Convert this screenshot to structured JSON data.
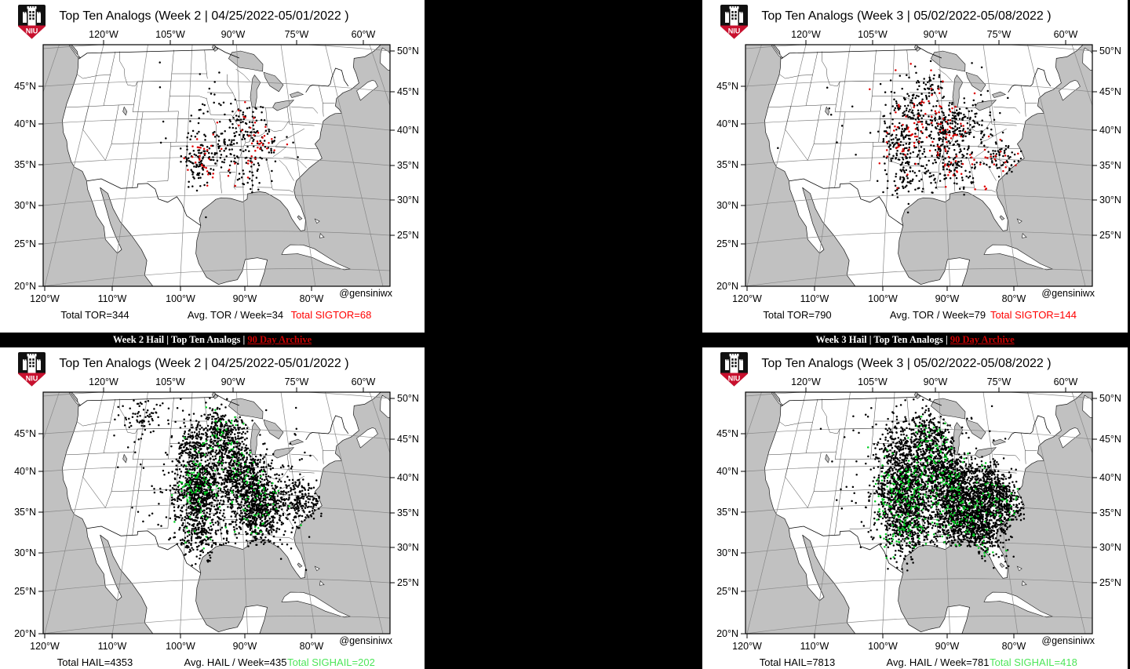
{
  "colors": {
    "background": "#000000",
    "water": "#c1c1c1",
    "land": "#ffffff",
    "coast": "#1a1a1a",
    "state_border": "#3c3c3c",
    "graticule": "#888888",
    "frame": "#000000",
    "dot_black": "#000000",
    "sig_tor_red": "#dd0000",
    "sig_hail_green": "#00cc22",
    "stat_red": "#ff0000",
    "stat_green": "#4ee65a",
    "banner_link_red": "#cc0000",
    "logo_red": "#c8102e"
  },
  "logo_text": "NIU",
  "attribution": "@gensiniwx",
  "axes": {
    "top": [
      "120°W",
      "105°W",
      "90°W",
      "75°W",
      "60°W"
    ],
    "bottom": [
      "120°W",
      "110°W",
      "100°W",
      "90°W",
      "80°W"
    ],
    "left": [
      "45°N",
      "40°N",
      "35°N",
      "30°N",
      "25°N",
      "20°N"
    ],
    "right": [
      "50°N",
      "45°N",
      "40°N",
      "35°N",
      "30°N",
      "25°N"
    ]
  },
  "banners": [
    {
      "text": "Week 2 Hail | Top Ten Analogs | ",
      "link": "90 Day Archive"
    },
    {
      "text": "Week 3 Hail | Top Ten Analogs | ",
      "link": "90 Day Archive"
    }
  ],
  "panels": [
    {
      "id": "tor-week2",
      "title": "Top Ten Analogs (Week 2 | 04/25/2022-05/01/2022 )",
      "stats": [
        {
          "label": "Total TOR=344",
          "color": "#000000"
        },
        {
          "label": "Avg. TOR / Week=34",
          "color": "#000000"
        },
        {
          "label": "Total SIGTOR=68",
          "color": "#ff0000"
        }
      ],
      "scatter": {
        "main": {
          "count": 344,
          "render": 344,
          "color": "#000000",
          "seed": 101,
          "clusters": [
            [
              35.4,
              97.6,
              1.6,
              1.8,
              0.26
            ],
            [
              33.2,
              97.8,
              1.2,
              1.5,
              0.1
            ],
            [
              36.6,
              92.5,
              1.5,
              2.0,
              0.14
            ],
            [
              39.3,
              88.6,
              1.6,
              2.2,
              0.16
            ],
            [
              36.8,
              86.0,
              1.2,
              1.8,
              0.09
            ],
            [
              33.2,
              88.6,
              1.5,
              1.8,
              0.1
            ],
            [
              41.5,
              96.5,
              1.2,
              1.5,
              0.05
            ],
            [
              38.0,
              95.0,
              5.0,
              7.0,
              0.1
            ]
          ]
        },
        "sig": {
          "count": 68,
          "render": 68,
          "color": "#dd0000",
          "seed": 202,
          "clusters": [
            [
              35.3,
              97.4,
              1.3,
              1.5,
              0.38
            ],
            [
              39.6,
              88.3,
              1.5,
              2.0,
              0.25
            ],
            [
              36.8,
              87.0,
              1.3,
              2.0,
              0.17
            ],
            [
              33.5,
              90.0,
              1.5,
              2.0,
              0.12
            ],
            [
              40.0,
              92.0,
              4.0,
              6.0,
              0.08
            ]
          ]
        }
      }
    },
    {
      "id": "tor-week3",
      "title": "Top Ten Analogs (Week 3 | 05/02/2022-05/08/2022 )",
      "stats": [
        {
          "label": "Total TOR=790",
          "color": "#000000"
        },
        {
          "label": "Avg. TOR / Week=79",
          "color": "#000000"
        },
        {
          "label": "Total SIGTOR=144",
          "color": "#ff0000"
        }
      ],
      "scatter": {
        "main": {
          "count": 790,
          "render": 790,
          "color": "#000000",
          "seed": 303,
          "clusters": [
            [
              36.6,
              97.6,
              1.8,
              2.0,
              0.17
            ],
            [
              41.3,
              96.3,
              1.6,
              2.0,
              0.11
            ],
            [
              38.7,
              90.3,
              1.6,
              2.2,
              0.14
            ],
            [
              40.2,
              85.3,
              1.5,
              2.2,
              0.1
            ],
            [
              34.6,
              87.6,
              1.6,
              2.2,
              0.12
            ],
            [
              35.3,
              79.6,
              1.2,
              1.6,
              0.07
            ],
            [
              44.3,
              92.5,
              1.4,
              2.0,
              0.06
            ],
            [
              31.8,
              96.8,
              1.5,
              1.8,
              0.07
            ],
            [
              33.3,
              92.0,
              1.5,
              2.0,
              0.05
            ],
            [
              38.0,
              93.0,
              5.5,
              8.0,
              0.11
            ]
          ]
        },
        "sig": {
          "count": 144,
          "render": 144,
          "color": "#dd0000",
          "seed": 404,
          "clusters": [
            [
              36.8,
              97.3,
              1.8,
              2.0,
              0.25
            ],
            [
              38.8,
              89.8,
              1.8,
              2.5,
              0.22
            ],
            [
              34.5,
              87.5,
              1.8,
              2.5,
              0.18
            ],
            [
              41.5,
              95.5,
              1.5,
              2.0,
              0.1
            ],
            [
              35.3,
              79.8,
              1.2,
              1.8,
              0.08
            ],
            [
              43.0,
              90.0,
              1.5,
              2.5,
              0.07
            ],
            [
              37.5,
              92.0,
              4.5,
              7.0,
              0.1
            ]
          ]
        }
      }
    },
    {
      "id": "hail-week2",
      "title": "Top Ten Analogs (Week 2 | 04/25/2022-05/01/2022 )",
      "stats": [
        {
          "label": "Total HAIL=4353",
          "color": "#000000"
        },
        {
          "label": "Avg. HAIL / Week=435",
          "color": "#000000"
        },
        {
          "label": "Total SIGHAIL=202",
          "color": "#4ee65a"
        }
      ],
      "scatter": {
        "main": {
          "count": 4353,
          "render": 3000,
          "color": "#000000",
          "seed": 505,
          "clusters": [
            [
              36.6,
              97.8,
              2.2,
              2.4,
              0.2
            ],
            [
              42.3,
              98.5,
              1.8,
              2.4,
              0.09
            ],
            [
              44.6,
              92.8,
              1.6,
              2.2,
              0.09
            ],
            [
              39.2,
              89.6,
              2.0,
              2.6,
              0.16
            ],
            [
              35.6,
              86.6,
              1.8,
              2.4,
              0.11
            ],
            [
              33.0,
              87.2,
              1.8,
              2.2,
              0.09
            ],
            [
              35.9,
              79.3,
              1.5,
              2.0,
              0.07
            ],
            [
              31.3,
              97.6,
              1.8,
              2.0,
              0.06
            ],
            [
              46.6,
              109.5,
              1.5,
              3.0,
              0.03
            ],
            [
              38.0,
              92.0,
              5.5,
              8.0,
              0.1
            ]
          ]
        },
        "sig": {
          "count": 202,
          "render": 202,
          "color": "#00cc22",
          "seed": 606,
          "clusters": [
            [
              37.0,
              97.8,
              2.0,
              2.2,
              0.3
            ],
            [
              39.5,
              89.5,
              2.0,
              2.5,
              0.2
            ],
            [
              44.5,
              92.5,
              1.5,
              2.0,
              0.12
            ],
            [
              33.5,
              87.5,
              2.0,
              2.5,
              0.12
            ],
            [
              31.5,
              97.5,
              1.5,
              2.0,
              0.08
            ],
            [
              35.5,
              85.0,
              2.0,
              3.0,
              0.1
            ],
            [
              41.0,
              98.0,
              2.0,
              2.5,
              0.08
            ]
          ]
        }
      }
    },
    {
      "id": "hail-week3",
      "title": "Top Ten Analogs (Week 3 | 05/02/2022-05/08/2022 )",
      "stats": [
        {
          "label": "Total HAIL=7813",
          "color": "#000000"
        },
        {
          "label": "Avg. HAIL / Week=781",
          "color": "#000000"
        },
        {
          "label": "Total SIGHAIL=418",
          "color": "#4ee65a"
        }
      ],
      "scatter": {
        "main": {
          "count": 7813,
          "render": 4200,
          "color": "#000000",
          "seed": 707,
          "clusters": [
            [
              36.6,
              97.6,
              2.4,
              2.6,
              0.16
            ],
            [
              41.8,
              97.5,
              2.0,
              2.5,
              0.06
            ],
            [
              44.3,
              92.3,
              1.6,
              2.2,
              0.05
            ],
            [
              39.0,
              89.3,
              2.2,
              2.8,
              0.13
            ],
            [
              35.5,
              86.0,
              2.2,
              2.8,
              0.13
            ],
            [
              32.6,
              86.6,
              2.0,
              2.6,
              0.11
            ],
            [
              35.4,
              79.6,
              1.8,
              2.2,
              0.09
            ],
            [
              31.6,
              96.6,
              2.0,
              2.4,
              0.08
            ],
            [
              31.2,
              83.3,
              1.6,
              2.0,
              0.05
            ],
            [
              37.8,
              81.0,
              1.5,
              2.0,
              0.04
            ],
            [
              38.0,
              91.0,
              5.5,
              8.0,
              0.1
            ]
          ]
        },
        "sig": {
          "count": 418,
          "render": 418,
          "color": "#00cc22",
          "seed": 808,
          "clusters": [
            [
              36.8,
              97.4,
              2.2,
              2.4,
              0.26
            ],
            [
              33.8,
              87.0,
              2.2,
              2.8,
              0.2
            ],
            [
              39.0,
              89.0,
              2.2,
              2.8,
              0.18
            ],
            [
              31.8,
              96.8,
              1.8,
              2.2,
              0.1
            ],
            [
              35.5,
              80.0,
              1.8,
              2.2,
              0.08
            ],
            [
              43.0,
              93.0,
              2.0,
              2.5,
              0.08
            ],
            [
              30.8,
              83.5,
              1.5,
              2.0,
              0.05
            ],
            [
              37.0,
              92.0,
              4.5,
              7.0,
              0.05
            ]
          ]
        }
      }
    }
  ]
}
